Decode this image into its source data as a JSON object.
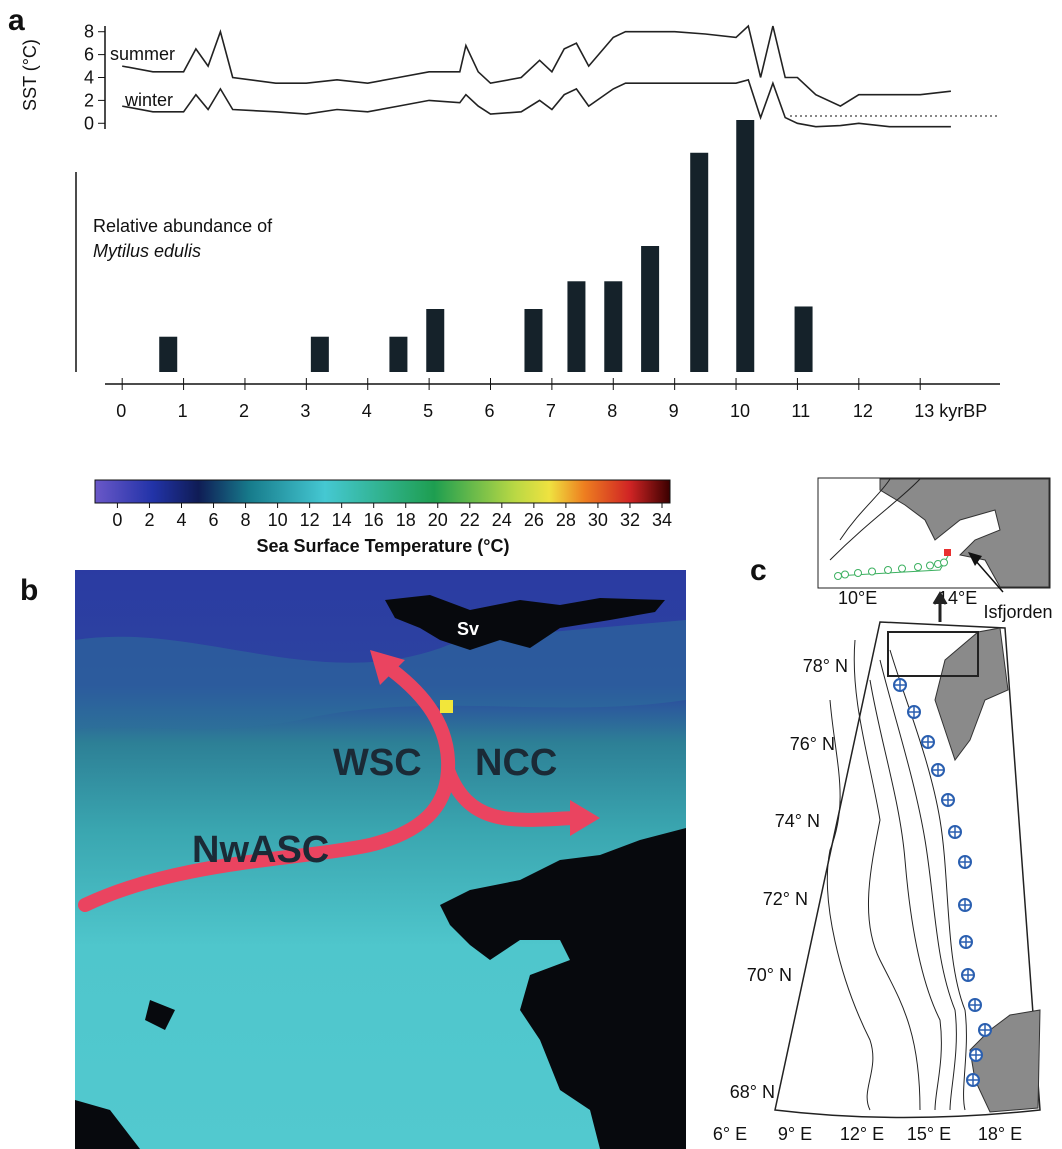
{
  "chart_data": [
    {
      "type": "line",
      "panel_label": "a",
      "ylabel": "SST (°C)",
      "x": [
        0,
        0.5,
        1,
        1.2,
        1.4,
        1.6,
        1.8,
        2.5,
        3,
        3.5,
        4,
        4.5,
        5,
        5.5,
        5.6,
        5.8,
        6,
        6.5,
        6.8,
        7,
        7.2,
        7.4,
        7.6,
        8,
        8.2,
        8.5,
        9,
        9.5,
        10,
        10.2,
        10.4,
        10.6,
        10.8,
        11,
        11.3,
        11.7,
        12,
        12.5,
        13,
        13.5
      ],
      "series": [
        {
          "name": "summer",
          "color": "#222222",
          "values": [
            5,
            4.5,
            4.5,
            6.5,
            5,
            8,
            4,
            3.5,
            3.5,
            3.8,
            3.5,
            4,
            4.5,
            4.5,
            6.8,
            4.5,
            3.5,
            4,
            5.5,
            4.5,
            6.5,
            7,
            5,
            7.5,
            8,
            8,
            8,
            7.8,
            7.5,
            8.5,
            4,
            8.5,
            4,
            4,
            2.5,
            1.5,
            2.5,
            2.5,
            2.5,
            2.8
          ]
        },
        {
          "name": "winter",
          "color": "#222222",
          "values": [
            1.5,
            1,
            1,
            2.5,
            1.2,
            3,
            1.2,
            1,
            0.8,
            1.2,
            1,
            1.5,
            2,
            1.8,
            2.5,
            1.5,
            0.8,
            1,
            2,
            1.2,
            2.5,
            3,
            1.5,
            3,
            3.5,
            3.5,
            3.5,
            3.5,
            3.5,
            3.8,
            0.5,
            3.5,
            0.5,
            0,
            -0.3,
            -0.2,
            0,
            -0.3,
            -0.3,
            -0.3
          ]
        }
      ],
      "xlim": [
        -0.28,
        14.3
      ],
      "ylim": [
        -0.5,
        8.5
      ],
      "yticks": [
        0,
        2,
        4,
        6,
        8
      ]
    },
    {
      "type": "bar",
      "title": "Relative abundance of",
      "subtitle": "Mytilus edulis",
      "x": [
        0.75,
        3.22,
        4.5,
        5.1,
        6.7,
        7.4,
        8.0,
        8.6,
        9.4,
        10.15,
        11.1
      ],
      "values": [
        14,
        14,
        14,
        25,
        25,
        36,
        36,
        50,
        87,
        100,
        26
      ],
      "color": "#15222a",
      "xlim": [
        -0.28,
        14.3
      ],
      "ylim": [
        0,
        100
      ],
      "xticks": [
        0,
        1,
        2,
        3,
        4,
        5,
        6,
        7,
        8,
        9,
        10,
        11,
        12,
        {
          "value": 13,
          "label": "13 kyrBP"
        }
      ]
    },
    {
      "type": "colorbar",
      "title": "Sea Surface Temperature (°C)",
      "clim": [
        -1.4,
        34.5
      ],
      "ticks": [
        0,
        2,
        4,
        6,
        8,
        10,
        12,
        14,
        16,
        18,
        20,
        22,
        24,
        26,
        28,
        30,
        32,
        34
      ]
    }
  ],
  "panel_b": {
    "label": "b",
    "regions": [
      "Sv",
      "WSC",
      "NCC",
      "NwASC"
    ]
  },
  "panel_c": {
    "label": "c",
    "inset_ticks": [
      "10°E",
      "14°E"
    ],
    "inset_label": "Isfjorden",
    "lat_labels": [
      "78° N",
      "76° N",
      "74° N",
      "72° N",
      "70° N",
      "68° N"
    ],
    "lon_labels": [
      "6° E",
      "9° E",
      "12° E",
      "15° E",
      "18° E"
    ]
  }
}
